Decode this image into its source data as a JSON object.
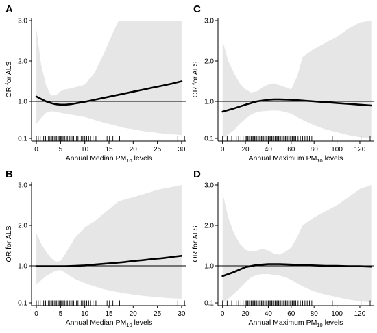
{
  "chart_data": [
    {
      "panel": "A",
      "type": "line",
      "ylabel": "OR for ALS",
      "xlabel": "Annual Median PM",
      "xlabel_sub": "10",
      "xlabel_suffix": " levels",
      "xlim": [
        -1,
        31
      ],
      "yticks": [
        0.1,
        1.0,
        2.0,
        3.0
      ],
      "ytick_labels": [
        "0.1",
        "1.0",
        "2.0",
        "3.0"
      ],
      "xticks": [
        0,
        5,
        10,
        15,
        20,
        25,
        30
      ],
      "reference_line": 1.0,
      "curve": {
        "x": [
          0,
          1,
          2,
          3,
          4,
          5,
          6,
          7,
          8,
          9,
          10,
          12,
          14,
          16,
          18,
          20,
          22,
          24,
          26,
          28,
          30
        ],
        "y": [
          1.12,
          1.06,
          1.0,
          0.96,
          0.93,
          0.92,
          0.92,
          0.93,
          0.95,
          0.97,
          0.99,
          1.04,
          1.09,
          1.14,
          1.19,
          1.24,
          1.29,
          1.34,
          1.39,
          1.44,
          1.5
        ]
      },
      "ci_upper": {
        "x": [
          0,
          1,
          2,
          3,
          4,
          5,
          6,
          7,
          8,
          9,
          10,
          12,
          14,
          16,
          17,
          20,
          25,
          30
        ],
        "y": [
          2.8,
          1.9,
          1.4,
          1.15,
          1.15,
          1.25,
          1.3,
          1.32,
          1.35,
          1.38,
          1.42,
          1.7,
          2.2,
          2.75,
          3.0,
          3.0,
          3.0,
          3.0
        ]
      },
      "ci_lower": {
        "x": [
          0,
          1,
          2,
          3,
          4,
          5,
          6,
          7,
          8,
          9,
          10,
          12,
          14,
          16,
          18,
          20,
          22,
          24,
          26,
          28,
          30
        ],
        "y": [
          0.45,
          0.6,
          0.72,
          0.76,
          0.75,
          0.72,
          0.7,
          0.68,
          0.66,
          0.64,
          0.62,
          0.55,
          0.48,
          0.42,
          0.36,
          0.32,
          0.28,
          0.25,
          0.22,
          0.2,
          0.18
        ]
      },
      "rug": [
        0,
        0.4,
        0.8,
        1.2,
        1.5,
        1.9,
        2.2,
        2.5,
        2.8,
        3.1,
        3.3,
        3.5,
        3.8,
        4.0,
        4.2,
        4.5,
        4.7,
        5.0,
        5.2,
        5.5,
        5.7,
        5.9,
        6.2,
        6.4,
        6.7,
        6.9,
        7.2,
        7.5,
        7.7,
        8.0,
        8.3,
        8.6,
        9.0,
        9.3,
        9.6,
        10.0,
        10.4,
        10.8,
        11.2,
        11.7,
        12.3,
        14.6,
        15.1,
        15.8,
        17.2,
        29.2,
        30.6
      ]
    },
    {
      "panel": "B",
      "type": "line",
      "ylabel": "OR for ALS",
      "xlabel": "Annual Median PM",
      "xlabel_sub": "10",
      "xlabel_suffix": " levels",
      "xlim": [
        -1,
        31
      ],
      "yticks": [
        0.1,
        1.0,
        2.0,
        3.0
      ],
      "ytick_labels": [
        "0.1",
        "1.0",
        "2.0",
        "3.0"
      ],
      "xticks": [
        0,
        5,
        10,
        15,
        20,
        25,
        30
      ],
      "reference_line": 1.0,
      "curve": {
        "x": [
          0,
          2,
          4,
          6,
          8,
          10,
          12,
          14,
          16,
          18,
          20,
          22,
          24,
          26,
          28,
          30
        ],
        "y": [
          0.99,
          0.99,
          0.99,
          0.99,
          1.0,
          1.01,
          1.03,
          1.05,
          1.07,
          1.09,
          1.12,
          1.14,
          1.17,
          1.19,
          1.22,
          1.25
        ]
      },
      "ci_upper": {
        "x": [
          0,
          1,
          2,
          3,
          4,
          5,
          6,
          7,
          8,
          10,
          12,
          14,
          16,
          17,
          20,
          25,
          30
        ],
        "y": [
          1.8,
          1.55,
          1.35,
          1.2,
          1.1,
          1.12,
          1.3,
          1.5,
          1.7,
          1.95,
          2.1,
          2.3,
          2.5,
          2.6,
          2.7,
          2.88,
          3.0
        ]
      },
      "ci_lower": {
        "x": [
          0,
          1,
          2,
          3,
          4,
          5,
          6,
          7,
          8,
          10,
          12,
          14,
          16,
          18,
          20,
          22,
          24,
          26,
          28,
          30
        ],
        "y": [
          0.55,
          0.65,
          0.75,
          0.82,
          0.88,
          0.9,
          0.83,
          0.75,
          0.68,
          0.58,
          0.5,
          0.43,
          0.38,
          0.34,
          0.3,
          0.27,
          0.25,
          0.23,
          0.21,
          0.2
        ]
      },
      "rug": [
        0,
        0.4,
        0.8,
        1.2,
        1.5,
        1.9,
        2.2,
        2.5,
        2.8,
        3.1,
        3.3,
        3.5,
        3.8,
        4.0,
        4.2,
        4.5,
        4.7,
        5.0,
        5.2,
        5.5,
        5.7,
        5.9,
        6.2,
        6.4,
        6.7,
        6.9,
        7.2,
        7.5,
        7.7,
        8.0,
        8.3,
        8.6,
        9.0,
        9.3,
        9.6,
        10.0,
        10.4,
        10.8,
        11.2,
        11.7,
        12.3,
        14.6,
        15.1,
        15.8,
        17.2,
        29.2,
        30.6
      ]
    },
    {
      "panel": "C",
      "type": "line",
      "ylabel": "OR for ALS",
      "xlabel": "Annual Maximum PM",
      "xlabel_sub": "10",
      "xlabel_suffix": " levels",
      "xlim": [
        -4,
        132
      ],
      "yticks": [
        0.1,
        1.0,
        2.0,
        3.0
      ],
      "ytick_labels": [
        "0.1",
        "1.0",
        "2.0",
        "3.0"
      ],
      "xticks": [
        0,
        20,
        40,
        60,
        80,
        100,
        120
      ],
      "reference_line": 1.0,
      "curve": {
        "x": [
          0,
          10,
          20,
          30,
          40,
          45,
          50,
          60,
          70,
          80,
          90,
          100,
          110,
          120,
          130
        ],
        "y": [
          0.75,
          0.83,
          0.92,
          1.0,
          1.04,
          1.05,
          1.05,
          1.04,
          1.02,
          1.0,
          0.98,
          0.96,
          0.94,
          0.92,
          0.9
        ]
      },
      "ci_upper": {
        "x": [
          0,
          5,
          10,
          15,
          20,
          25,
          30,
          35,
          40,
          45,
          50,
          55,
          60,
          65,
          70,
          80,
          90,
          100,
          110,
          120,
          130
        ],
        "y": [
          2.5,
          2.0,
          1.7,
          1.45,
          1.3,
          1.22,
          1.25,
          1.35,
          1.42,
          1.45,
          1.4,
          1.35,
          1.3,
          1.6,
          2.1,
          2.3,
          2.45,
          2.6,
          2.8,
          2.95,
          3.0
        ]
      },
      "ci_lower": {
        "x": [
          0,
          5,
          10,
          15,
          20,
          25,
          30,
          35,
          40,
          45,
          50,
          55,
          60,
          65,
          70,
          80,
          90,
          100,
          110,
          120,
          130
        ],
        "y": [
          0.1,
          0.2,
          0.3,
          0.45,
          0.58,
          0.68,
          0.74,
          0.76,
          0.77,
          0.78,
          0.77,
          0.74,
          0.7,
          0.62,
          0.55,
          0.42,
          0.32,
          0.25,
          0.18,
          0.13,
          0.1
        ]
      },
      "rug": [
        0,
        4,
        8,
        12,
        14,
        16,
        18,
        20,
        21,
        22,
        23,
        24,
        25,
        26,
        27,
        28,
        29,
        30,
        31,
        32,
        33,
        34,
        35,
        36,
        37,
        38,
        39,
        40,
        41,
        42,
        43,
        44,
        45,
        46,
        47,
        48,
        49,
        50,
        51,
        52,
        53,
        54,
        55,
        56,
        57,
        58,
        59,
        60,
        61,
        62,
        63,
        64,
        66,
        68,
        70,
        72,
        74,
        76,
        78,
        96,
        121,
        129
      ]
    },
    {
      "panel": "D",
      "type": "line",
      "ylabel": "OR for ALS",
      "xlabel": "Annual Maximum PM",
      "xlabel_sub": "10",
      "xlabel_suffix": " levels",
      "xlim": [
        -4,
        132
      ],
      "yticks": [
        0.1,
        1.0,
        2.0,
        3.0
      ],
      "ytick_labels": [
        "0.1",
        "1.0",
        "2.0",
        "3.0"
      ],
      "xticks": [
        0,
        20,
        40,
        60,
        80,
        100,
        120
      ],
      "reference_line": 1.0,
      "curve": {
        "x": [
          0,
          10,
          20,
          30,
          40,
          45,
          50,
          60,
          70,
          80,
          90,
          100,
          110,
          120,
          130
        ],
        "y": [
          0.75,
          0.85,
          0.97,
          1.02,
          1.04,
          1.04,
          1.04,
          1.03,
          1.02,
          1.01,
          1.0,
          1.0,
          0.99,
          0.99,
          0.98
        ]
      },
      "ci_upper": {
        "x": [
          0,
          5,
          10,
          15,
          20,
          25,
          30,
          35,
          40,
          45,
          50,
          55,
          60,
          65,
          70,
          80,
          90,
          100,
          110,
          120,
          130
        ],
        "y": [
          2.8,
          2.2,
          1.8,
          1.55,
          1.4,
          1.35,
          1.38,
          1.42,
          1.38,
          1.3,
          1.28,
          1.35,
          1.45,
          1.7,
          2.0,
          2.2,
          2.35,
          2.5,
          2.7,
          2.9,
          3.0
        ]
      },
      "ci_lower": {
        "x": [
          0,
          5,
          10,
          15,
          20,
          25,
          30,
          35,
          40,
          45,
          50,
          55,
          60,
          65,
          70,
          80,
          90,
          100,
          110,
          120,
          130
        ],
        "y": [
          0.1,
          0.2,
          0.32,
          0.45,
          0.6,
          0.72,
          0.78,
          0.8,
          0.8,
          0.78,
          0.76,
          0.72,
          0.66,
          0.58,
          0.5,
          0.38,
          0.3,
          0.24,
          0.18,
          0.14,
          0.11
        ]
      },
      "rug": [
        0,
        4,
        8,
        12,
        14,
        16,
        18,
        20,
        21,
        22,
        23,
        24,
        25,
        26,
        27,
        28,
        29,
        30,
        31,
        32,
        33,
        34,
        35,
        36,
        37,
        38,
        39,
        40,
        41,
        42,
        43,
        44,
        45,
        46,
        47,
        48,
        49,
        50,
        51,
        52,
        53,
        54,
        55,
        56,
        57,
        58,
        59,
        60,
        61,
        62,
        63,
        64,
        66,
        68,
        70,
        72,
        74,
        76,
        78,
        96,
        121,
        129
      ]
    }
  ],
  "colors": {
    "ci_band": "#e6e6e6",
    "curve": "#000000",
    "reference": "#000000",
    "axis": "#000000"
  }
}
